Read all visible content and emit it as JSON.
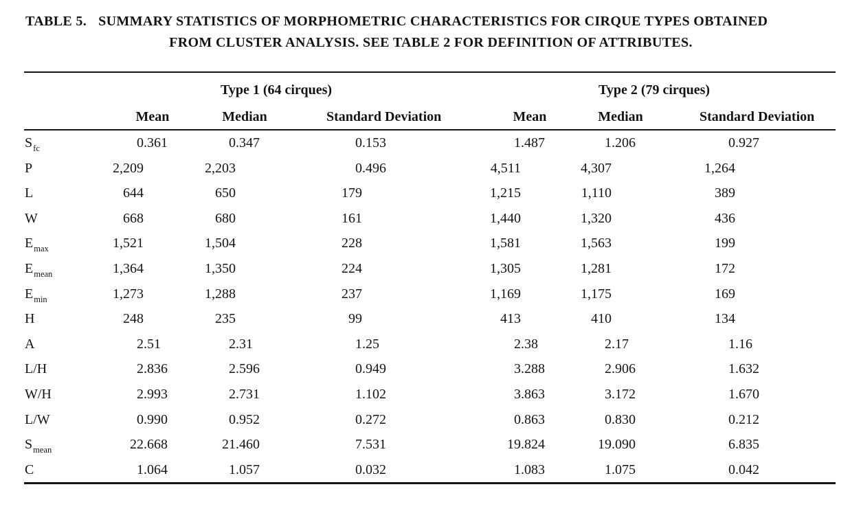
{
  "caption": {
    "label": "TABLE 5.",
    "line1": "SUMMARY STATISTICS OF MORPHOMETRIC CHARACTERISTICS FOR CIRQUE TYPES OBTAINED",
    "line2": "FROM CLUSTER ANALYSIS. SEE TABLE 2 FOR DEFINITION OF ATTRIBUTES."
  },
  "colors": {
    "text": "#141414",
    "rule": "#161616",
    "background": "#ffffff"
  },
  "chart_data": {
    "type": "table",
    "groups": [
      {
        "label": "Type 1 (64 cirques)",
        "columns": [
          "Mean",
          "Median",
          "Standard Deviation"
        ]
      },
      {
        "label": "Type 2 (79 cirques)",
        "columns": [
          "Mean",
          "Median",
          "Standard Deviation"
        ]
      }
    ],
    "rows": [
      {
        "attribute": "S",
        "subscript": "fc",
        "type1": [
          "0.361",
          "0.347",
          "0.153"
        ],
        "type2": [
          "1.487",
          "1.206",
          "0.927"
        ]
      },
      {
        "attribute": "P",
        "subscript": "",
        "type1": [
          "2,209",
          "2,203",
          "0.496"
        ],
        "type2": [
          "4,511",
          "4,307",
          "1,264"
        ]
      },
      {
        "attribute": "L",
        "subscript": "",
        "type1": [
          "644",
          "650",
          "179"
        ],
        "type2": [
          "1,215",
          "1,110",
          "389"
        ]
      },
      {
        "attribute": "W",
        "subscript": "",
        "type1": [
          "668",
          "680",
          "161"
        ],
        "type2": [
          "1,440",
          "1,320",
          "436"
        ]
      },
      {
        "attribute": "E",
        "subscript": "max",
        "type1": [
          "1,521",
          "1,504",
          "228"
        ],
        "type2": [
          "1,581",
          "1,563",
          "199"
        ]
      },
      {
        "attribute": "E",
        "subscript": "mean",
        "type1": [
          "1,364",
          "1,350",
          "224"
        ],
        "type2": [
          "1,305",
          "1,281",
          "172"
        ]
      },
      {
        "attribute": "E",
        "subscript": "min",
        "type1": [
          "1,273",
          "1,288",
          "237"
        ],
        "type2": [
          "1,169",
          "1,175",
          "169"
        ]
      },
      {
        "attribute": "H",
        "subscript": "",
        "type1": [
          "248",
          "235",
          "99"
        ],
        "type2": [
          "413",
          "410",
          "134"
        ]
      },
      {
        "attribute": "A",
        "subscript": "",
        "type1": [
          "2.51",
          "2.31",
          "1.25"
        ],
        "type2": [
          "2.38",
          "2.17",
          "1.16"
        ]
      },
      {
        "attribute": "L/H",
        "subscript": "",
        "type1": [
          "2.836",
          "2.596",
          "0.949"
        ],
        "type2": [
          "3.288",
          "2.906",
          "1.632"
        ]
      },
      {
        "attribute": "W/H",
        "subscript": "",
        "type1": [
          "2.993",
          "2.731",
          "1.102"
        ],
        "type2": [
          "3.863",
          "3.172",
          "1.670"
        ]
      },
      {
        "attribute": "L/W",
        "subscript": "",
        "type1": [
          "0.990",
          "0.952",
          "0.272"
        ],
        "type2": [
          "0.863",
          "0.830",
          "0.212"
        ]
      },
      {
        "attribute": "S",
        "subscript": "mean",
        "type1": [
          "22.668",
          "21.460",
          "7.531"
        ],
        "type2": [
          "19.824",
          "19.090",
          "6.835"
        ]
      },
      {
        "attribute": "C",
        "subscript": "",
        "type1": [
          "1.064",
          "1.057",
          "0.032"
        ],
        "type2": [
          "1.083",
          "1.075",
          "0.042"
        ]
      }
    ]
  }
}
